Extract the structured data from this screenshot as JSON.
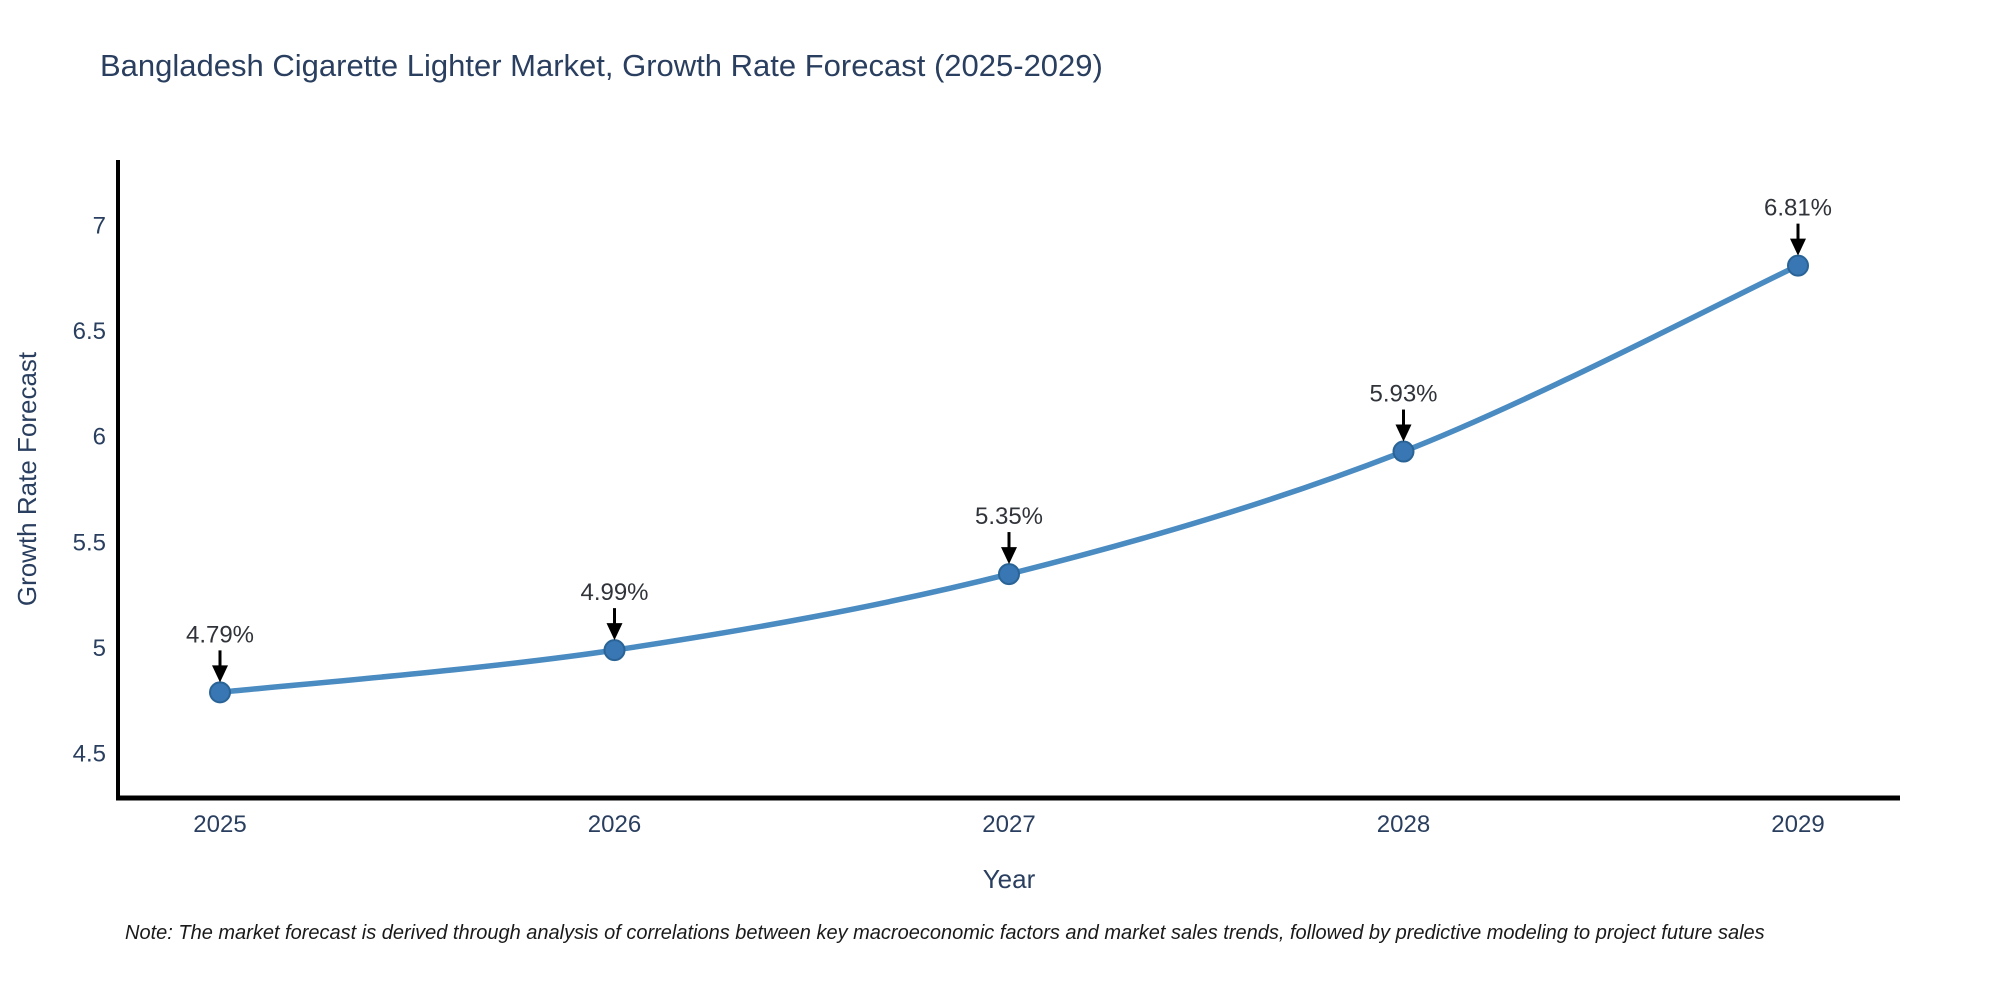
{
  "title": "Bangladesh Cigarette Lighter Market, Growth Rate Forecast (2025-2029)",
  "note": "Note: The market forecast is derived through analysis of correlations between key macroeconomic factors and market sales trends, followed by predictive modeling to project future sales",
  "chart_data": {
    "type": "line",
    "title": "Bangladesh Cigarette Lighter Market, Growth Rate Forecast (2025-2029)",
    "xlabel": "Year",
    "ylabel": "Growth Rate Forecast",
    "categories": [
      "2025",
      "2026",
      "2027",
      "2028",
      "2029"
    ],
    "values": [
      4.79,
      4.99,
      5.35,
      5.93,
      6.81
    ],
    "data_labels": [
      "4.79%",
      "4.99%",
      "5.35%",
      "5.93%",
      "6.81%"
    ],
    "ytick_values": [
      4.5,
      5,
      5.5,
      6,
      6.5,
      7
    ],
    "ytick_labels": [
      "4.5",
      "5",
      "5.5",
      "6",
      "6.5",
      "7"
    ],
    "ylim": [
      4.29,
      7.31
    ],
    "grid": false,
    "legend_position": "none",
    "line_shape": "spline",
    "colors": {
      "line": "#4a8bc2",
      "marker": "#3876b4",
      "marker_edge": "#2a6496",
      "axis": "#000000",
      "tick_text": "#2a3f5f",
      "axis_title_text": "#2a3f5f",
      "annotation_text": "#30343a",
      "arrow": "#000000",
      "background": "#ffffff"
    }
  }
}
